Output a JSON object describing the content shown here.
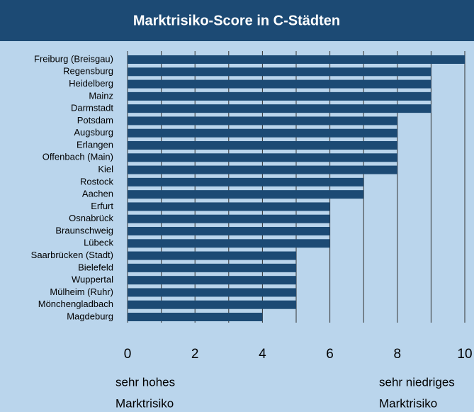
{
  "chart_data": {
    "type": "bar",
    "orientation": "horizontal",
    "title": "Marktrisiko-Score in C-Städten",
    "categories": [
      "Freiburg (Breisgau)",
      "Regensburg",
      "Heidelberg",
      "Mainz",
      "Darmstadt",
      "Potsdam",
      "Augsburg",
      "Erlangen",
      "Offenbach (Main)",
      "Kiel",
      "Rostock",
      "Aachen",
      "Erfurt",
      "Osnabrück",
      "Braunschweig",
      "Lübeck",
      "Saarbrücken (Stadt)",
      "Bielefeld",
      "Wuppertal",
      "Mülheim (Ruhr)",
      "Mönchengladbach",
      "Magdeburg"
    ],
    "values": [
      10,
      9,
      9,
      9,
      9,
      8,
      8,
      8,
      8,
      8,
      7,
      7,
      6,
      6,
      6,
      6,
      5,
      5,
      5,
      5,
      5,
      4
    ],
    "color": "#1c4a74",
    "xlim": [
      0,
      10
    ],
    "xticks": [
      0,
      2,
      4,
      6,
      8,
      10
    ],
    "minor_xticks": [
      1,
      3,
      5,
      7,
      9
    ],
    "grid": true,
    "x_label_left": [
      "sehr hohes",
      "Marktrisiko"
    ],
    "x_label_right": [
      "sehr niedriges",
      "Marktrisiko"
    ]
  }
}
